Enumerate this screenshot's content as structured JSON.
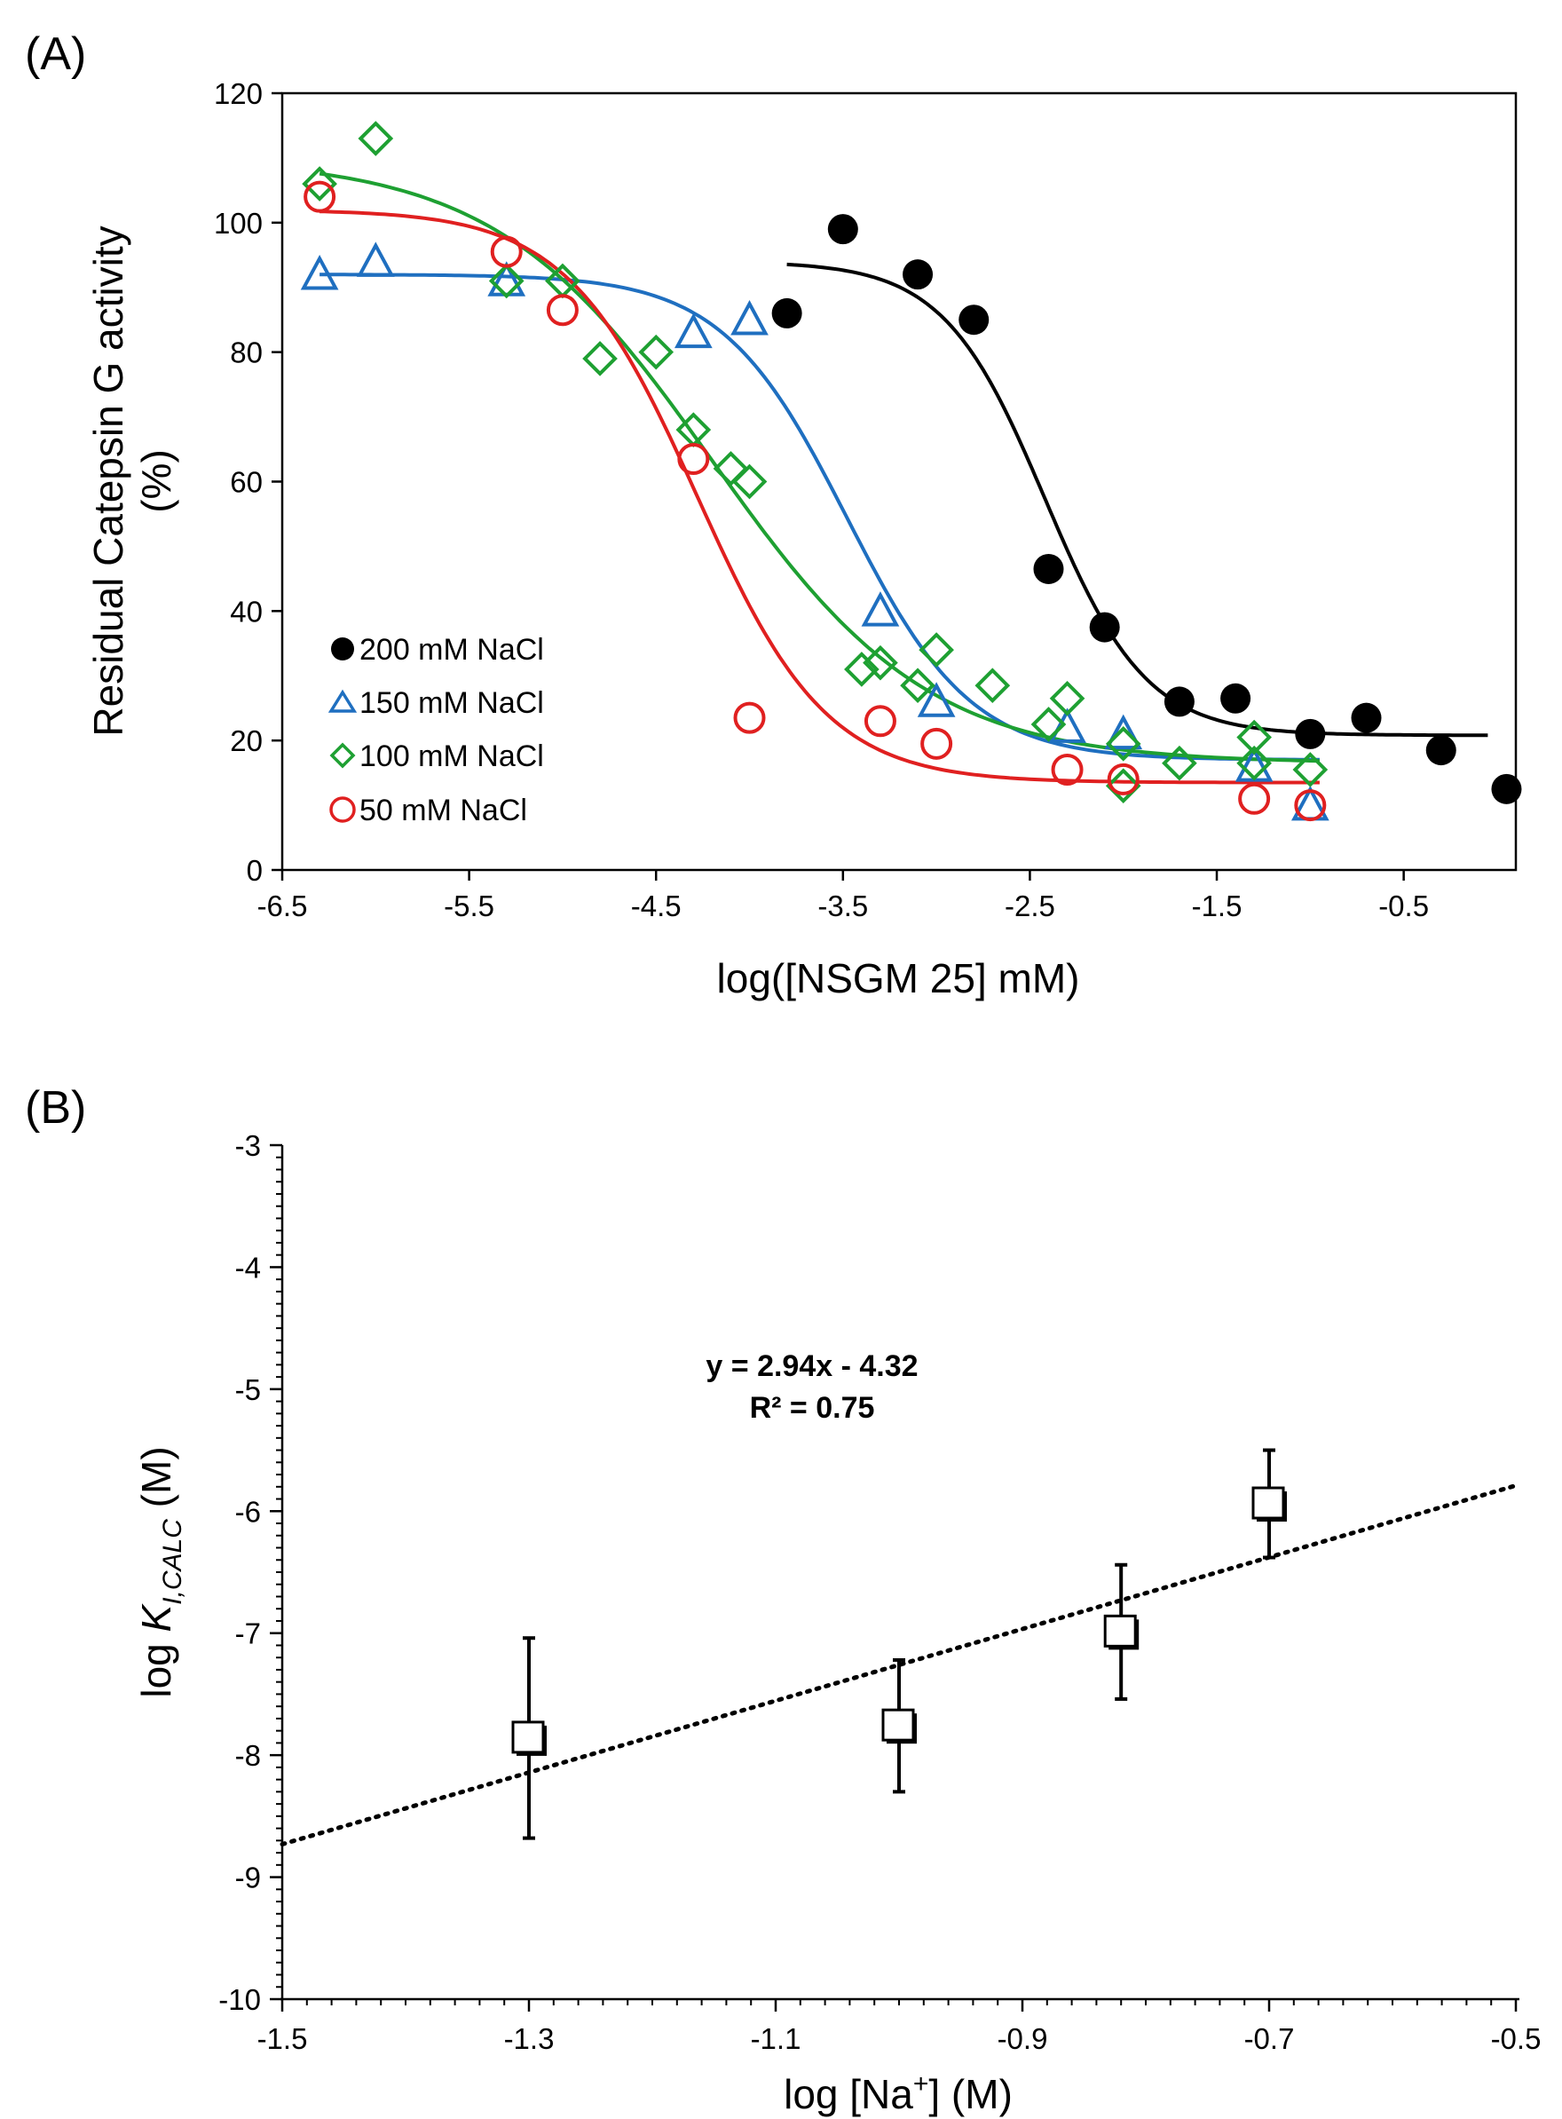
{
  "panel_a": {
    "label": "(A)",
    "chart_data": {
      "type": "scatter",
      "title": "",
      "xlabel": "log([NSGM 25] mM)",
      "ylabel_line1": "Residual Catepsin G activity",
      "ylabel_line2": "(%)",
      "xlim": [
        -6.5,
        0.1
      ],
      "ylim": [
        0,
        120
      ],
      "xticks": [
        -6.5,
        -5.5,
        -4.5,
        -3.5,
        -2.5,
        -1.5,
        -0.5
      ],
      "xtick_labels": [
        "-6.5",
        "-5.5",
        "-4.5",
        "-3.5",
        "-2.5",
        "-1.5",
        "-0.5"
      ],
      "yticks": [
        0,
        20,
        40,
        60,
        80,
        100,
        120
      ],
      "ytick_labels": [
        "0",
        "20",
        "40",
        "60",
        "80",
        "100",
        "120"
      ],
      "legend_position": "bottom-left",
      "series": [
        {
          "name": "200 mM NaCl",
          "marker": "filled-circle",
          "color": "#000000",
          "x": [
            -3.8,
            -3.5,
            -3.1,
            -2.8,
            -2.4,
            -2.1,
            -1.7,
            -1.4,
            -1.0,
            -0.7,
            -0.3,
            0.05
          ],
          "y": [
            86,
            99,
            92,
            85,
            46.5,
            37.5,
            26,
            26.5,
            21,
            23.5,
            18.5,
            12.5
          ],
          "fit": {
            "top": 94,
            "bottom": 20.8,
            "logIC50": -2.42,
            "hill": 1.6,
            "x_range": [
              -3.8,
              -0.05
            ]
          }
        },
        {
          "name": "150 mM NaCl",
          "marker": "open-triangle",
          "color": "#1f6fc0",
          "x": [
            -6.3,
            -6.0,
            -5.3,
            -4.3,
            -4.0,
            -3.3,
            -3.0,
            -2.3,
            -2.0,
            -1.3,
            -1.0
          ],
          "y": [
            92,
            94,
            91,
            83,
            85,
            40,
            26,
            22,
            21,
            16,
            10
          ],
          "fit": {
            "top": 92,
            "bottom": 17,
            "logIC50": -3.48,
            "hill": 1.3,
            "x_range": [
              -6.3,
              -0.95
            ]
          }
        },
        {
          "name": "100 mM NaCl",
          "marker": "open-diamond",
          "color": "#1ea032",
          "x": [
            -6.3,
            -6.0,
            -5.3,
            -5.0,
            -4.8,
            -4.5,
            -4.3,
            -4.1,
            -4.0,
            -3.4,
            -3.3,
            -3.1,
            -3.0,
            -2.7,
            -2.4,
            -2.3,
            -2.0,
            -2.0,
            -1.7,
            -1.3,
            -1.3,
            -1.0
          ],
          "y": [
            106,
            113,
            91,
            91,
            79,
            80,
            68,
            62,
            60,
            31,
            32,
            28.5,
            34,
            28.5,
            22.5,
            26.5,
            13,
            19.5,
            16.5,
            16.5,
            20.5,
            15.5
          ],
          "fit": {
            "top": 110,
            "bottom": 16.5,
            "logIC50": -4.2,
            "hill": 0.75,
            "x_range": [
              -6.3,
              -0.95
            ]
          }
        },
        {
          "name": "50 mM NaCl",
          "marker": "open-circle",
          "color": "#e02020",
          "x": [
            -6.3,
            -5.3,
            -5.0,
            -4.3,
            -4.0,
            -3.3,
            -3.0,
            -2.3,
            -2.0,
            -1.3,
            -1.0
          ],
          "y": [
            104,
            95.5,
            86.5,
            63.5,
            23.5,
            23,
            19.5,
            15.5,
            14,
            11,
            10
          ],
          "fit": {
            "top": 102,
            "bottom": 13.5,
            "logIC50": -4.28,
            "hill": 1.25,
            "x_range": [
              -6.3,
              -0.95
            ]
          }
        }
      ]
    }
  },
  "panel_b": {
    "label": "(B)",
    "chart_data": {
      "type": "scatter",
      "title": "",
      "xlabel_prefix": "log [Na",
      "xlabel_sup": "+",
      "xlabel_suffix": "] (M)",
      "ylabel_prefix": "log ",
      "ylabel_k": "K",
      "ylabel_sub": "I,CALC",
      "ylabel_suffix": " (M)",
      "xlim": [
        -1.5,
        -0.5
      ],
      "ylim": [
        -10,
        -3
      ],
      "xticks": [
        -1.5,
        -1.3,
        -1.1,
        -0.9,
        -0.7,
        -0.5
      ],
      "xtick_labels": [
        "-1.5",
        "-1.3",
        "-1.1",
        "-0.9",
        "-0.7",
        "-0.5"
      ],
      "yticks": [
        -10,
        -9,
        -8,
        -7,
        -6,
        -5,
        -4,
        -3
      ],
      "ytick_labels": [
        "-10",
        "-9",
        "-8",
        "-7",
        "-6",
        "-5",
        "-4",
        "-3"
      ],
      "points": {
        "marker": "open-square",
        "x": [
          -1.3,
          -1.0,
          -0.82,
          -0.7
        ],
        "y": [
          -7.86,
          -7.76,
          -6.99,
          -5.94
        ],
        "err": [
          0.82,
          0.54,
          0.55,
          0.44
        ]
      },
      "trendline": {
        "style": "dotted",
        "slope": 2.94,
        "intercept": -4.32,
        "x_range": [
          -1.5,
          -0.5
        ]
      },
      "equation": "y = 2.94x - 4.32",
      "r_squared": "R² = 0.75"
    }
  }
}
